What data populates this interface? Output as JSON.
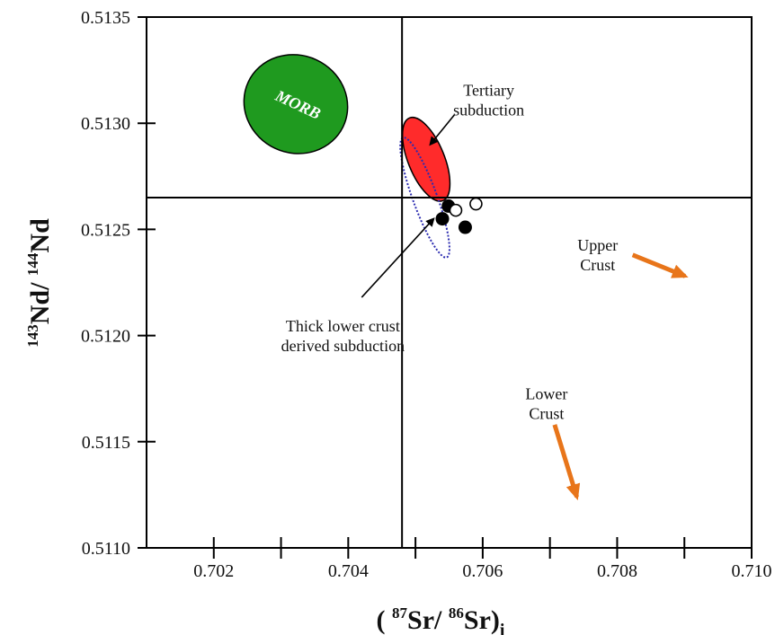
{
  "chart_data": {
    "type": "scatter",
    "xlim": [
      0.701,
      0.71
    ],
    "ylim": [
      0.511,
      0.5135
    ],
    "x_ticks": [
      0.702,
      0.703,
      0.704,
      0.705,
      0.706,
      0.707,
      0.708,
      0.709,
      0.71
    ],
    "x_tick_labels": [
      "0.702",
      "",
      "0.704",
      "",
      "0.706",
      "",
      "0.708",
      "",
      "0.710"
    ],
    "y_ticks": [
      0.511,
      0.5115,
      0.512,
      0.5125,
      0.513,
      0.5135
    ],
    "y_tick_labels": [
      "0.5110",
      "0.5115",
      "0.5120",
      "0.5125",
      "0.5130",
      "0.5135"
    ],
    "xlabel": {
      "open": "( ",
      "sup1": "87",
      "mid": "Sr/ ",
      "sup2": "86",
      "end": "Sr)",
      "sub": "i"
    },
    "ylabel": {
      "sup1": "143",
      "mid": "Nd/ ",
      "sup2": "144",
      "end": "Nd"
    },
    "reference_lines": {
      "x": 0.7048,
      "y": 0.51265
    },
    "filled_points": [
      {
        "x": 0.70549,
        "y": 0.51261
      },
      {
        "x": 0.7054,
        "y": 0.51255
      },
      {
        "x": 0.70574,
        "y": 0.51251
      }
    ],
    "open_points": [
      {
        "x": 0.7056,
        "y": 0.51259
      },
      {
        "x": 0.7059,
        "y": 0.51262
      }
    ],
    "fields": [
      {
        "label": "MORB",
        "cx": 0.70322,
        "cy": 0.51309,
        "rx_data": 0.00078,
        "ry_data": 0.00023,
        "rotate": 25,
        "fill": "#1f9a1f",
        "stroke": "#000000",
        "dashed": false,
        "label_color": "#ffffff"
      },
      {
        "label": "Tertiary subduction",
        "cx": 0.70516,
        "cy": 0.51283,
        "rx_data": 0.00027,
        "ry_data": 0.00021,
        "rotate": -22,
        "fill": "#ff2b2b",
        "stroke": "#000000",
        "dashed": false
      },
      {
        "label": "Thick lower crust derived subduction",
        "cx": 0.70514,
        "cy": 0.51265,
        "rx_data": 0.00018,
        "ry_data": 0.0003,
        "rotate": -20,
        "fill": "none",
        "stroke": "#2b2bb0",
        "dashed": true
      }
    ],
    "annotations": [
      {
        "lines": [
          "Tertiary",
          "subduction"
        ],
        "tx": 0.70609,
        "ty": 0.51313,
        "ax1": 0.70558,
        "ay1": 0.51304,
        "ax2": 0.70522,
        "ay2": 0.5129,
        "arrow_color": "#000000"
      },
      {
        "lines": [
          "Thick lower crust",
          "derived subduction"
        ],
        "tx": 0.70392,
        "ty": 0.51202,
        "ax1": 0.7042,
        "ay1": 0.51218,
        "ax2": 0.70527,
        "ay2": 0.51255,
        "arrow_color": "#000000"
      },
      {
        "lines": [
          "Upper",
          "Crust"
        ],
        "tx": 0.70771,
        "ty": 0.5124,
        "ax1": 0.70823,
        "ay1": 0.51238,
        "ax2": 0.70901,
        "ay2": 0.51228,
        "arrow_color": "#e8751a"
      },
      {
        "lines": [
          "Lower",
          "Crust"
        ],
        "tx": 0.70695,
        "ty": 0.5117,
        "ax1": 0.70707,
        "ay1": 0.51158,
        "ax2": 0.7074,
        "ay2": 0.51124,
        "arrow_color": "#e8751a"
      }
    ],
    "grid": false
  }
}
